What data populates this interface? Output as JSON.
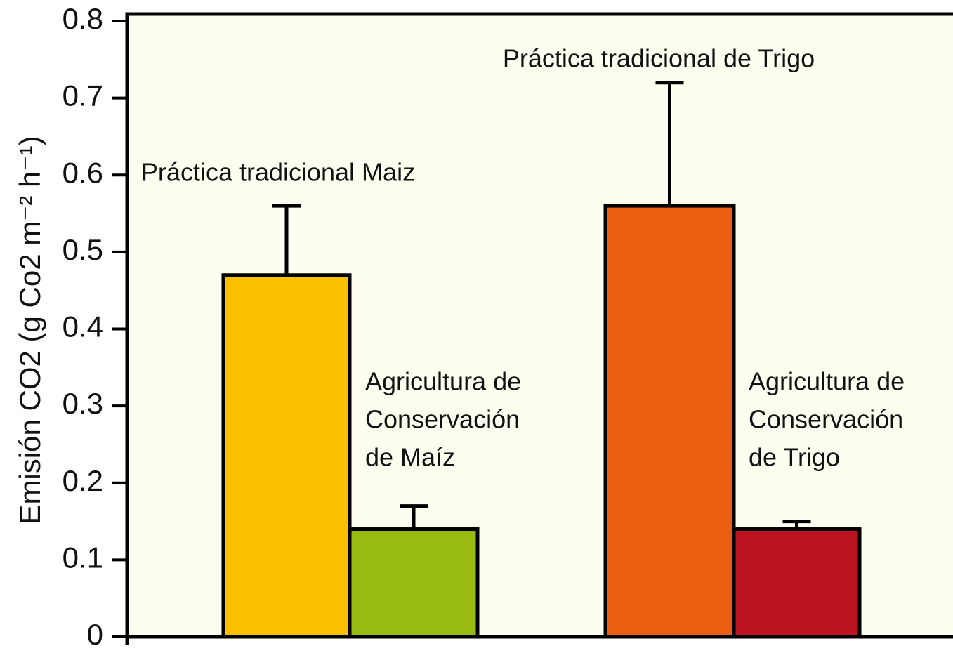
{
  "chart_data": {
    "type": "bar",
    "ylabel": "Emisión CO2 (g Co2 m⁻² h⁻¹)",
    "categories": [
      [
        "Práctica tradicional Maiz"
      ],
      [
        "Agricultura de",
        "Conservación",
        "de Maíz"
      ],
      [
        "Práctica tradicional de Trigo"
      ],
      [
        "Agricultura de",
        "Conservación",
        "de Trigo"
      ]
    ],
    "values": [
      0.47,
      0.14,
      0.56,
      0.14
    ],
    "errors": [
      0.09,
      0.03,
      0.16,
      0.01
    ],
    "colors": [
      "#f9c000",
      "#97bb10",
      "#e95e10",
      "#bd1321"
    ],
    "ylim": [
      0,
      0.8
    ],
    "yticks": [
      0,
      0.1,
      0.2,
      0.3,
      0.4,
      0.5,
      0.6,
      0.7,
      0.8
    ]
  }
}
